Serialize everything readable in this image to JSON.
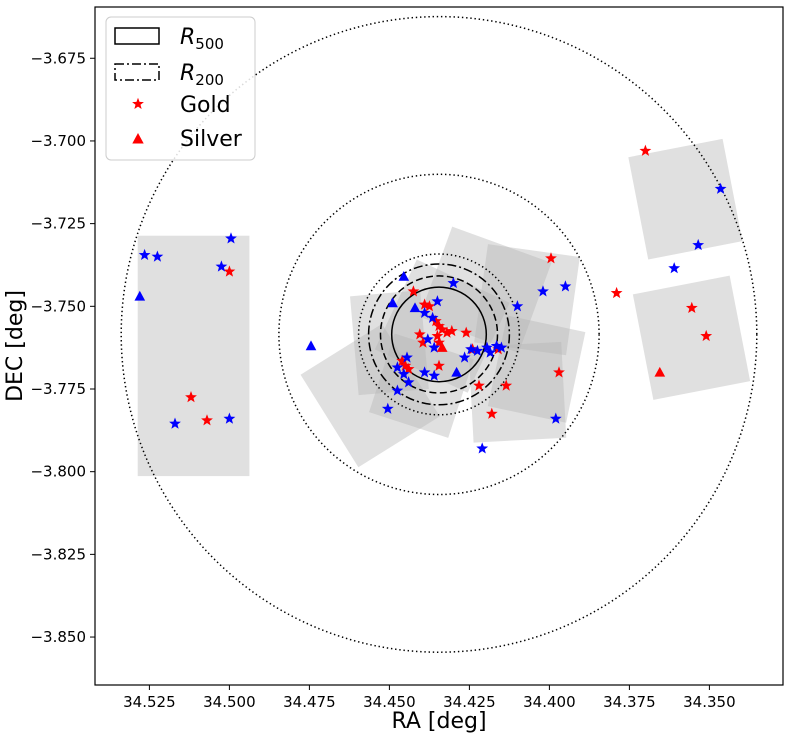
{
  "chart_data": {
    "type": "scatter",
    "title": "",
    "xlabel": "RA [deg]",
    "ylabel": "DEC [deg]",
    "xlim": [
      34.542,
      34.327
    ],
    "ylim": [
      -3.8645,
      -3.6595
    ],
    "x_axis_inverted": true,
    "grid": false,
    "xticks": [
      34.525,
      34.5,
      34.475,
      34.45,
      34.425,
      34.4,
      34.375,
      34.35
    ],
    "xtick_labels": [
      "34.525",
      "34.500",
      "34.475",
      "34.450",
      "34.425",
      "34.400",
      "34.375",
      "34.350"
    ],
    "yticks": [
      -3.675,
      -3.7,
      -3.725,
      -3.75,
      -3.775,
      -3.8,
      -3.825,
      -3.85
    ],
    "ytick_labels": [
      "−3.675",
      "−3.700",
      "−3.725",
      "−3.750",
      "−3.775",
      "−3.800",
      "−3.825",
      "−3.850"
    ],
    "center": [
      34.4345,
      -3.7585
    ],
    "legend": {
      "position": "top-left",
      "entries": [
        {
          "key": "r500",
          "label_main": "R",
          "label_sub": "500",
          "marker": "solid-rect"
        },
        {
          "key": "r200",
          "label_main": "R",
          "label_sub": "200",
          "marker": "dashdot-rect"
        },
        {
          "key": "gold",
          "label": "Gold",
          "marker": "star",
          "color": "#ff0000"
        },
        {
          "key": "silver",
          "label": "Silver",
          "marker": "triangle",
          "color": "#ff0000"
        }
      ]
    },
    "circles": [
      {
        "name": "r500",
        "radius_deg": 0.0143,
        "style": "solid"
      },
      {
        "name": "r500-ring-2",
        "radius_deg": 0.0177,
        "style": "dashed"
      },
      {
        "name": "r200",
        "radius_deg": 0.0213,
        "style": "dashdot"
      },
      {
        "name": "r200-ring-2",
        "radius_deg": 0.0243,
        "style": "dotted"
      },
      {
        "name": "ring-large",
        "radius_deg": 0.0484,
        "style": "dotted"
      },
      {
        "name": "ring-outer",
        "radius_deg": 0.0961,
        "style": "dotted"
      }
    ],
    "footprints": [
      {
        "ra": 34.5112,
        "dec": -3.765,
        "w": 0.0349,
        "h": 0.0727,
        "angle": 0
      },
      {
        "ra": 34.4335,
        "dec": -3.756,
        "w": 0.032,
        "h": 0.03,
        "angle": 25
      },
      {
        "ra": 34.456,
        "dec": -3.777,
        "w": 0.03,
        "h": 0.033,
        "angle": -32
      },
      {
        "ra": 34.42,
        "dec": -3.745,
        "w": 0.033,
        "h": 0.029,
        "angle": 20
      },
      {
        "ra": 34.407,
        "dec": -3.748,
        "w": 0.029,
        "h": 0.03,
        "angle": 8
      },
      {
        "ra": 34.45,
        "dec": -3.761,
        "w": 0.022,
        "h": 0.03,
        "angle": -5
      },
      {
        "ra": 34.44,
        "dec": -3.774,
        "w": 0.026,
        "h": 0.025,
        "angle": 18
      },
      {
        "ra": 34.41,
        "dec": -3.776,
        "w": 0.029,
        "h": 0.029,
        "angle": -3
      },
      {
        "ra": 34.404,
        "dec": -3.769,
        "w": 0.025,
        "h": 0.028,
        "angle": 12
      },
      {
        "ra": 34.3575,
        "dec": -3.7176,
        "w": 0.03,
        "h": 0.0315,
        "angle": -11
      },
      {
        "ra": 34.3556,
        "dec": -3.7595,
        "w": 0.0308,
        "h": 0.0325,
        "angle": -11
      }
    ],
    "series": [
      {
        "name": "Gold",
        "marker": "star",
        "color": "#ff0000",
        "points": [
          [
            34.5,
            -3.7395
          ],
          [
            34.512,
            -3.7775
          ],
          [
            34.507,
            -3.7845
          ],
          [
            34.4425,
            -3.7455
          ],
          [
            34.439,
            -3.7495
          ],
          [
            34.4375,
            -3.75
          ],
          [
            34.4405,
            -3.7585
          ],
          [
            34.4395,
            -3.761
          ],
          [
            34.4355,
            -3.7545
          ],
          [
            34.4345,
            -3.756
          ],
          [
            34.4335,
            -3.757
          ],
          [
            34.435,
            -3.759
          ],
          [
            34.432,
            -3.758
          ],
          [
            34.4345,
            -3.761
          ],
          [
            34.4305,
            -3.7575
          ],
          [
            34.426,
            -3.758
          ],
          [
            34.424,
            -3.763
          ],
          [
            34.446,
            -3.7665
          ],
          [
            34.444,
            -3.769
          ],
          [
            34.445,
            -3.768
          ],
          [
            34.4345,
            -3.768
          ],
          [
            34.416,
            -3.763
          ],
          [
            34.422,
            -3.774
          ],
          [
            34.418,
            -3.7825
          ],
          [
            34.4135,
            -3.774
          ],
          [
            34.3995,
            -3.7355
          ],
          [
            34.397,
            -3.77
          ],
          [
            34.379,
            -3.746
          ],
          [
            34.37,
            -3.703
          ],
          [
            34.3555,
            -3.7505
          ],
          [
            34.351,
            -3.759
          ]
        ]
      },
      {
        "name": "Gold (blue)",
        "marker": "star",
        "color": "#0000ff",
        "points": [
          [
            34.5225,
            -3.735
          ],
          [
            34.5265,
            -3.7345
          ],
          [
            34.4995,
            -3.7295
          ],
          [
            34.5025,
            -3.738
          ],
          [
            34.517,
            -3.7855
          ],
          [
            34.5,
            -3.784
          ],
          [
            34.439,
            -3.752
          ],
          [
            34.4365,
            -3.7535
          ],
          [
            34.435,
            -3.7485
          ],
          [
            34.43,
            -3.743
          ],
          [
            34.438,
            -3.76
          ],
          [
            34.436,
            -3.7625
          ],
          [
            34.4445,
            -3.7655
          ],
          [
            34.4455,
            -3.7705
          ],
          [
            34.444,
            -3.773
          ],
          [
            34.4475,
            -3.7755
          ],
          [
            34.4505,
            -3.781
          ],
          [
            34.4475,
            -3.7685
          ],
          [
            34.439,
            -3.77
          ],
          [
            34.436,
            -3.771
          ],
          [
            34.4265,
            -3.7655
          ],
          [
            34.4245,
            -3.763
          ],
          [
            34.4225,
            -3.7635
          ],
          [
            34.4195,
            -3.7625
          ],
          [
            34.4185,
            -3.764
          ],
          [
            34.4165,
            -3.762
          ],
          [
            34.415,
            -3.7625
          ],
          [
            34.421,
            -3.793
          ],
          [
            34.41,
            -3.75
          ],
          [
            34.402,
            -3.7455
          ],
          [
            34.395,
            -3.744
          ],
          [
            34.398,
            -3.784
          ],
          [
            34.361,
            -3.7385
          ],
          [
            34.3535,
            -3.7315
          ],
          [
            34.3465,
            -3.7145
          ]
        ]
      },
      {
        "name": "Silver",
        "marker": "triangle",
        "color": "#ff0000",
        "points": [
          [
            34.4335,
            -3.7625
          ],
          [
            34.3655,
            -3.77
          ]
        ]
      },
      {
        "name": "Silver (blue)",
        "marker": "triangle",
        "color": "#0000ff",
        "points": [
          [
            34.528,
            -3.747
          ],
          [
            34.4745,
            -3.762
          ],
          [
            34.4455,
            -3.741
          ],
          [
            34.449,
            -3.749
          ],
          [
            34.442,
            -3.7505
          ],
          [
            34.429,
            -3.77
          ]
        ]
      }
    ]
  }
}
